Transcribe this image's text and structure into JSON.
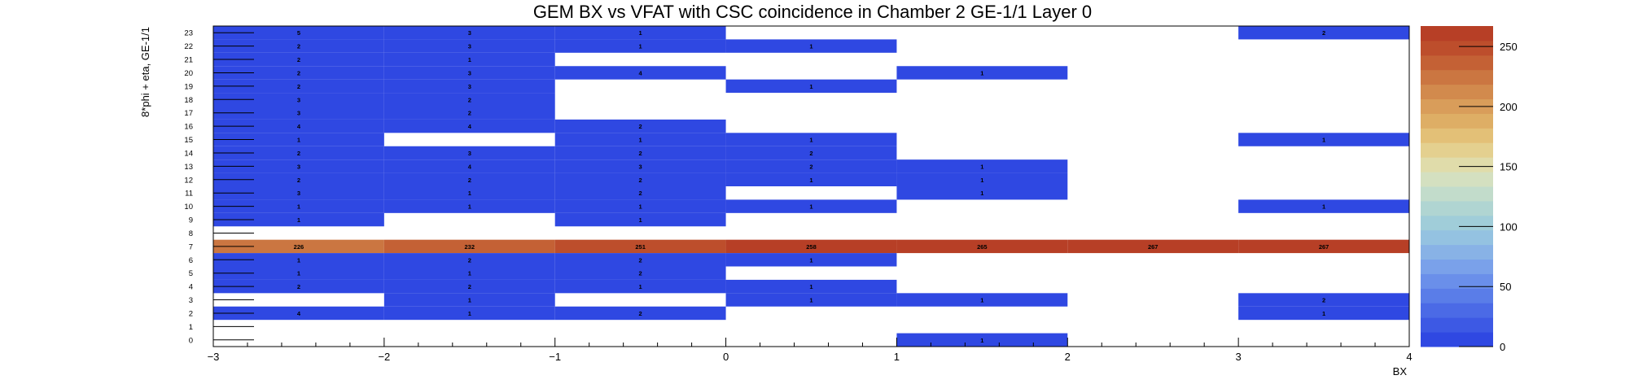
{
  "chart_data": {
    "type": "heatmap",
    "title": "GEM BX vs VFAT with CSC coincidence in Chamber 2 GE-1/1 Layer 0",
    "xlabel": "BX",
    "ylabel": "8*phi + eta, GE-1/1",
    "xlim": [
      -3,
      4
    ],
    "ylim": [
      0,
      24
    ],
    "x_ticks": [
      "−3",
      "−2",
      "−1",
      "0",
      "1",
      "2",
      "3",
      "4"
    ],
    "y_tick_values": [
      0,
      1,
      2,
      3,
      4,
      5,
      6,
      7,
      8,
      9,
      10,
      11,
      12,
      13,
      14,
      15,
      16,
      17,
      18,
      19,
      20,
      21,
      22,
      23
    ],
    "zlim": [
      0,
      267
    ],
    "z_ticks": [
      "0",
      "50",
      "100",
      "150",
      "200",
      "250"
    ],
    "palette": [
      "#2f48e2",
      "#3d59e4",
      "#4b6ae6",
      "#5a7de8",
      "#6a8fea",
      "#7aa1ea",
      "#88b2e6",
      "#94c2e1",
      "#a0cdd9",
      "#b0d5d2",
      "#c2dccb",
      "#d4e0c0",
      "#e0dcaa",
      "#e4d08f",
      "#e3c077",
      "#deae65",
      "#d99d5a",
      "#d28a4d",
      "#cb7641",
      "#c46135",
      "#bd4e2c",
      "#b73f26"
    ],
    "bins": [
      {
        "x": -2.5,
        "y": 23,
        "v": 5
      },
      {
        "x": -1.5,
        "y": 23,
        "v": 3
      },
      {
        "x": -0.5,
        "y": 23,
        "v": 1
      },
      {
        "x": 3.5,
        "y": 23,
        "v": 2
      },
      {
        "x": -2.5,
        "y": 22,
        "v": 2
      },
      {
        "x": -1.5,
        "y": 22,
        "v": 3
      },
      {
        "x": -0.5,
        "y": 22,
        "v": 1
      },
      {
        "x": 0.5,
        "y": 22,
        "v": 1
      },
      {
        "x": -2.5,
        "y": 21,
        "v": 2
      },
      {
        "x": -1.5,
        "y": 21,
        "v": 1
      },
      {
        "x": -2.5,
        "y": 20,
        "v": 2
      },
      {
        "x": -1.5,
        "y": 20,
        "v": 3
      },
      {
        "x": -0.5,
        "y": 20,
        "v": 4
      },
      {
        "x": 1.5,
        "y": 20,
        "v": 1
      },
      {
        "x": -2.5,
        "y": 19,
        "v": 2
      },
      {
        "x": -1.5,
        "y": 19,
        "v": 3
      },
      {
        "x": 0.5,
        "y": 19,
        "v": 1
      },
      {
        "x": -2.5,
        "y": 18,
        "v": 3
      },
      {
        "x": -1.5,
        "y": 18,
        "v": 2
      },
      {
        "x": -2.5,
        "y": 17,
        "v": 3
      },
      {
        "x": -1.5,
        "y": 17,
        "v": 2
      },
      {
        "x": -2.5,
        "y": 16,
        "v": 4
      },
      {
        "x": -1.5,
        "y": 16,
        "v": 4
      },
      {
        "x": -0.5,
        "y": 16,
        "v": 2
      },
      {
        "x": -2.5,
        "y": 15,
        "v": 1
      },
      {
        "x": -0.5,
        "y": 15,
        "v": 1
      },
      {
        "x": 0.5,
        "y": 15,
        "v": 1
      },
      {
        "x": 3.5,
        "y": 15,
        "v": 1
      },
      {
        "x": -2.5,
        "y": 14,
        "v": 2
      },
      {
        "x": -1.5,
        "y": 14,
        "v": 3
      },
      {
        "x": -0.5,
        "y": 14,
        "v": 2
      },
      {
        "x": 0.5,
        "y": 14,
        "v": 2
      },
      {
        "x": -2.5,
        "y": 13,
        "v": 3
      },
      {
        "x": -1.5,
        "y": 13,
        "v": 4
      },
      {
        "x": -0.5,
        "y": 13,
        "v": 3
      },
      {
        "x": 0.5,
        "y": 13,
        "v": 2
      },
      {
        "x": 1.5,
        "y": 13,
        "v": 1
      },
      {
        "x": -2.5,
        "y": 12,
        "v": 2
      },
      {
        "x": -1.5,
        "y": 12,
        "v": 2
      },
      {
        "x": -0.5,
        "y": 12,
        "v": 2
      },
      {
        "x": 0.5,
        "y": 12,
        "v": 1
      },
      {
        "x": 1.5,
        "y": 12,
        "v": 1
      },
      {
        "x": -2.5,
        "y": 11,
        "v": 3
      },
      {
        "x": -1.5,
        "y": 11,
        "v": 1
      },
      {
        "x": -0.5,
        "y": 11,
        "v": 2
      },
      {
        "x": 1.5,
        "y": 11,
        "v": 1
      },
      {
        "x": -2.5,
        "y": 10,
        "v": 1
      },
      {
        "x": -1.5,
        "y": 10,
        "v": 1
      },
      {
        "x": -0.5,
        "y": 10,
        "v": 1
      },
      {
        "x": 0.5,
        "y": 10,
        "v": 1
      },
      {
        "x": 3.5,
        "y": 10,
        "v": 1
      },
      {
        "x": -2.5,
        "y": 9,
        "v": 1
      },
      {
        "x": -0.5,
        "y": 9,
        "v": 1
      },
      {
        "x": -2.5,
        "y": 7,
        "v": 226
      },
      {
        "x": -1.5,
        "y": 7,
        "v": 232
      },
      {
        "x": -0.5,
        "y": 7,
        "v": 251
      },
      {
        "x": 0.5,
        "y": 7,
        "v": 258
      },
      {
        "x": 1.5,
        "y": 7,
        "v": 265
      },
      {
        "x": 2.5,
        "y": 7,
        "v": 267
      },
      {
        "x": 3.5,
        "y": 7,
        "v": 267
      },
      {
        "x": -2.5,
        "y": 6,
        "v": 1
      },
      {
        "x": -1.5,
        "y": 6,
        "v": 2
      },
      {
        "x": -0.5,
        "y": 6,
        "v": 2
      },
      {
        "x": 0.5,
        "y": 6,
        "v": 1
      },
      {
        "x": -2.5,
        "y": 5,
        "v": 1
      },
      {
        "x": -1.5,
        "y": 5,
        "v": 1
      },
      {
        "x": -0.5,
        "y": 5,
        "v": 2
      },
      {
        "x": -2.5,
        "y": 4,
        "v": 2
      },
      {
        "x": -1.5,
        "y": 4,
        "v": 2
      },
      {
        "x": -0.5,
        "y": 4,
        "v": 1
      },
      {
        "x": 0.5,
        "y": 4,
        "v": 1
      },
      {
        "x": -1.5,
        "y": 3,
        "v": 1
      },
      {
        "x": 0.5,
        "y": 3,
        "v": 1
      },
      {
        "x": 1.5,
        "y": 3,
        "v": 1
      },
      {
        "x": 3.5,
        "y": 3,
        "v": 2
      },
      {
        "x": -2.5,
        "y": 2,
        "v": 4
      },
      {
        "x": -1.5,
        "y": 2,
        "v": 1
      },
      {
        "x": -0.5,
        "y": 2,
        "v": 2
      },
      {
        "x": 3.5,
        "y": 2,
        "v": 1
      },
      {
        "x": 1.5,
        "y": 0,
        "v": 1
      }
    ]
  }
}
